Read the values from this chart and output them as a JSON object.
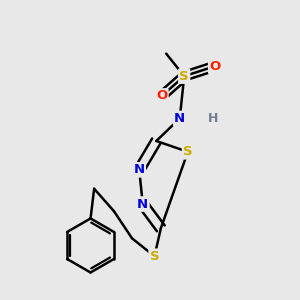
{
  "bg_color": "#e8e8e8",
  "colors": {
    "C": "#000000",
    "N": "#0000dd",
    "S": "#ccaa00",
    "O": "#ff2200",
    "H": "#708090",
    "bond": "#000000"
  },
  "bond_lw": 1.8,
  "figsize": [
    3.0,
    3.0
  ],
  "dpi": 100,
  "xlim": [
    0.05,
    0.95
  ],
  "ylim": [
    -0.05,
    1.05
  ]
}
